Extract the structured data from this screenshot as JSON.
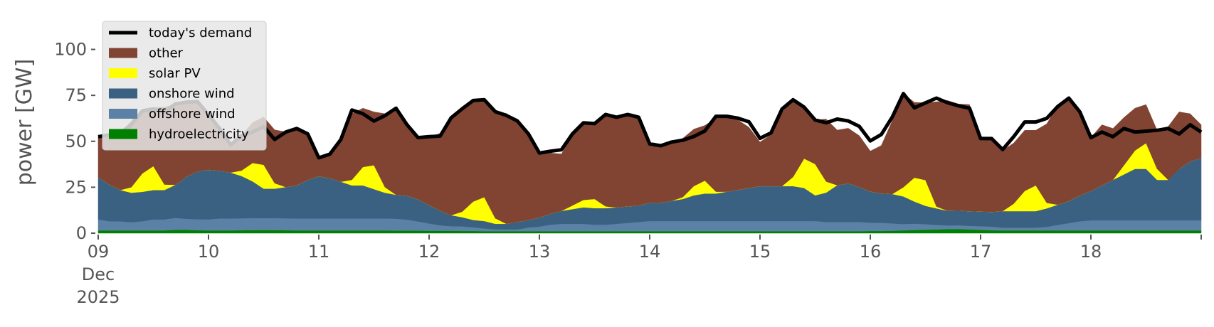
{
  "chart_data": {
    "type": "area",
    "ylabel": "power [GW]",
    "ylim": [
      0,
      118
    ],
    "yticks": [
      0,
      25,
      50,
      75,
      100
    ],
    "xlim_days": [
      9,
      19
    ],
    "x_tick_labels": [
      "09",
      "10",
      "11",
      "12",
      "13",
      "14",
      "15",
      "16",
      "17",
      "18"
    ],
    "x_tick_sublabels": [
      "Dec",
      "2025"
    ],
    "legend_position": "top-left",
    "grid": false,
    "x": [
      9.0,
      9.1,
      9.2,
      9.3,
      9.4,
      9.5,
      9.6,
      9.7,
      9.8,
      9.9,
      10.0,
      10.1,
      10.2,
      10.3,
      10.4,
      10.5,
      10.6,
      10.7,
      10.8,
      10.9,
      11.0,
      11.1,
      11.2,
      11.3,
      11.4,
      11.5,
      11.6,
      11.7,
      11.8,
      11.9,
      12.0,
      12.1,
      12.2,
      12.3,
      12.4,
      12.5,
      12.6,
      12.7,
      12.8,
      12.9,
      13.0,
      13.1,
      13.2,
      13.3,
      13.4,
      13.5,
      13.6,
      13.7,
      13.8,
      13.9,
      14.0,
      14.1,
      14.2,
      14.3,
      14.4,
      14.5,
      14.6,
      14.7,
      14.8,
      14.9,
      15.0,
      15.1,
      15.2,
      15.3,
      15.4,
      15.5,
      15.6,
      15.7,
      15.8,
      15.9,
      16.0,
      16.1,
      16.2,
      16.3,
      16.4,
      16.5,
      16.6,
      16.7,
      16.8,
      16.9,
      17.0,
      17.1,
      17.2,
      17.3,
      17.4,
      17.5,
      17.6,
      17.7,
      17.8,
      17.9,
      18.0,
      18.1,
      18.2,
      18.3,
      18.4,
      18.5,
      18.6,
      18.7,
      18.8,
      18.9,
      19.0
    ],
    "series": [
      {
        "name": "hydroelectricity",
        "color": "#008000",
        "values": [
          1.5,
          1.5,
          1.5,
          1.5,
          1.5,
          1.5,
          1.5,
          1.8,
          1.8,
          1.6,
          1.5,
          1.5,
          1.5,
          1.6,
          1.7,
          1.7,
          1.7,
          1.6,
          1.5,
          1.5,
          1.5,
          1.5,
          1.5,
          1.5,
          1.5,
          1.5,
          1.5,
          1.4,
          1.4,
          1.4,
          1.3,
          1.3,
          1.3,
          1.2,
          1.2,
          1.1,
          1.1,
          1.1,
          1.1,
          1.1,
          1.1,
          1.1,
          1.1,
          1.1,
          1.1,
          1.1,
          1.1,
          1.1,
          1.1,
          1.1,
          1.1,
          1.1,
          1.1,
          1.1,
          1.1,
          1.1,
          1.1,
          1.1,
          1.1,
          1.1,
          1.1,
          1.1,
          1.1,
          1.1,
          1.1,
          1.1,
          1.1,
          1.1,
          1.1,
          1.1,
          1.2,
          1.2,
          1.3,
          1.5,
          1.7,
          1.9,
          2.0,
          2.2,
          2.3,
          2.0,
          1.8,
          1.6,
          1.5,
          1.5,
          1.5,
          1.5,
          1.5,
          1.5,
          1.5,
          1.5,
          1.5,
          1.5,
          1.5,
          1.5,
          1.5,
          1.5,
          1.5,
          1.5,
          1.5,
          1.5,
          1.5
        ]
      },
      {
        "name": "offshore wind",
        "color": "#5b82a6",
        "values": [
          6.0,
          5.0,
          5.0,
          4.5,
          5.0,
          6.0,
          6.0,
          6.5,
          6.0,
          6.0,
          6.0,
          6.5,
          6.5,
          6.5,
          6.5,
          6.5,
          6.5,
          6.5,
          6.5,
          6.5,
          6.5,
          6.5,
          6.5,
          6.5,
          6.5,
          6.5,
          6.5,
          6.5,
          6.0,
          5.0,
          4.0,
          3.0,
          2.5,
          2.5,
          2.0,
          1.5,
          1.0,
          1.0,
          1.0,
          2.0,
          2.5,
          3.5,
          4.0,
          4.0,
          4.0,
          3.5,
          3.5,
          4.0,
          4.5,
          5.0,
          5.5,
          5.5,
          5.5,
          5.5,
          5.5,
          5.5,
          5.5,
          5.5,
          5.5,
          5.5,
          5.5,
          5.5,
          5.5,
          5.5,
          5.5,
          5.5,
          5.0,
          5.0,
          5.0,
          5.0,
          4.5,
          4.5,
          4.0,
          3.5,
          3.5,
          3.0,
          2.5,
          2.0,
          2.0,
          2.0,
          2.0,
          2.0,
          1.5,
          1.5,
          1.5,
          1.5,
          2.0,
          3.0,
          4.0,
          5.0,
          5.5,
          5.5,
          5.5,
          5.5,
          5.5,
          5.5,
          5.5,
          5.5,
          5.5,
          5.5,
          5.5
        ]
      },
      {
        "name": "onshore wind",
        "color": "#3b6182",
        "values": [
          23,
          20,
          17,
          16,
          16,
          16,
          16,
          18,
          23,
          26,
          27,
          26,
          25,
          23,
          20,
          16,
          16,
          17,
          18,
          21,
          23,
          22,
          20,
          18,
          18,
          16,
          14,
          13,
          13,
          12,
          10,
          8,
          6,
          5,
          4,
          4,
          3,
          3,
          4,
          4,
          5,
          6,
          7,
          8,
          9,
          9,
          9,
          9,
          9,
          9,
          10,
          10,
          11,
          12,
          14,
          15,
          15,
          16,
          17,
          18,
          19,
          19,
          19,
          19,
          18,
          14,
          16,
          20,
          21,
          19,
          17,
          16,
          16,
          15,
          12,
          10,
          9,
          8,
          8,
          8,
          8,
          8,
          9,
          9,
          9,
          9,
          10,
          11,
          12,
          14,
          16,
          19,
          22,
          25,
          28,
          28,
          22,
          22,
          28,
          32,
          34
        ]
      },
      {
        "name": "solar PV",
        "color": "#ffff00",
        "values": [
          0,
          0,
          0,
          3,
          10,
          13,
          3,
          0,
          0,
          0,
          0,
          0,
          0,
          3,
          10,
          13,
          3,
          0,
          0,
          0,
          0,
          0,
          0,
          3,
          10,
          13,
          3,
          0,
          0,
          0,
          0,
          0,
          0,
          3,
          10,
          13,
          3,
          0,
          0,
          0,
          0,
          0,
          0,
          2,
          4,
          5,
          1,
          0,
          0,
          0,
          0,
          0,
          0,
          1,
          5,
          7,
          1,
          0,
          0,
          0,
          0,
          0,
          0,
          5,
          16,
          17,
          6,
          0,
          0,
          0,
          0,
          0,
          0,
          5,
          13,
          14,
          1,
          0,
          0,
          0,
          0,
          0,
          0,
          4,
          11,
          14,
          3,
          0,
          0,
          0,
          0,
          0,
          0,
          5,
          10,
          14,
          6,
          0,
          0,
          0,
          0
        ]
      },
      {
        "name": "other",
        "color": "#824432",
        "values": [
          22,
          27,
          31,
          36,
          35,
          32,
          42,
          44,
          40,
          38,
          30,
          22,
          15,
          19,
          22,
          26,
          29,
          30,
          31,
          25,
          10,
          13,
          22,
          36,
          32,
          29,
          40,
          47,
          38,
          34,
          37,
          42,
          53,
          56,
          55,
          53,
          58,
          60,
          55,
          47,
          35,
          33,
          31,
          38,
          42,
          40,
          50,
          49,
          50,
          48,
          32,
          30,
          32,
          32,
          31,
          30,
          40,
          41,
          38,
          33,
          24,
          28,
          40,
          43,
          28,
          24,
          34,
          30,
          30,
          28,
          22,
          26,
          40,
          51,
          41,
          42,
          57,
          60,
          58,
          58,
          39,
          40,
          33,
          33,
          33,
          30,
          43,
          54,
          56,
          45,
          29,
          33,
          28,
          26,
          23,
          21,
          21,
          29,
          31,
          26,
          18
        ]
      },
      {
        "name": "today's demand",
        "color": "#000000",
        "values": [
          52.5,
          53.5,
          54.5,
          59,
          66.5,
          67.5,
          66,
          70.3,
          71.3,
          71.6,
          64.5,
          57,
          48,
          53,
          55,
          58,
          51,
          55,
          57,
          54,
          41,
          43,
          51,
          67,
          65,
          61,
          64,
          68,
          59,
          52,
          52.5,
          52.8,
          62.8,
          67.7,
          72.2,
          72.6,
          66.1,
          64.1,
          61.1,
          54.1,
          43.6,
          44.6,
          45.4,
          54.1,
          60.1,
          59.6,
          64.6,
          63.1,
          64.6,
          63.1,
          48.6,
          47.6,
          49.6,
          50.6,
          52.6,
          55.6,
          63.6,
          63.6,
          62.6,
          60.6,
          51.6,
          54.6,
          67.6,
          72.6,
          68.6,
          61.6,
          60.1,
          62.1,
          61.1,
          58.1,
          50.2,
          53.7,
          63.3,
          76,
          68.2,
          70.9,
          73.5,
          71,
          69.3,
          68,
          51.5,
          51.5,
          45.5,
          52.5,
          60.5,
          60.5,
          62.5,
          69,
          73.5,
          66,
          52,
          55,
          52.5,
          57,
          55,
          55.5,
          56,
          57,
          54,
          59,
          55
        ]
      }
    ],
    "legend": [
      {
        "label": "today's demand",
        "color": "#000000",
        "kind": "line"
      },
      {
        "label": "other",
        "color": "#824432",
        "kind": "patch"
      },
      {
        "label": "solar PV",
        "color": "#ffff00",
        "kind": "patch"
      },
      {
        "label": "onshore wind",
        "color": "#3b6182",
        "kind": "patch"
      },
      {
        "label": "offshore wind",
        "color": "#5b82a6",
        "kind": "patch"
      },
      {
        "label": "hydroelectricity",
        "color": "#008000",
        "kind": "patch"
      }
    ]
  }
}
